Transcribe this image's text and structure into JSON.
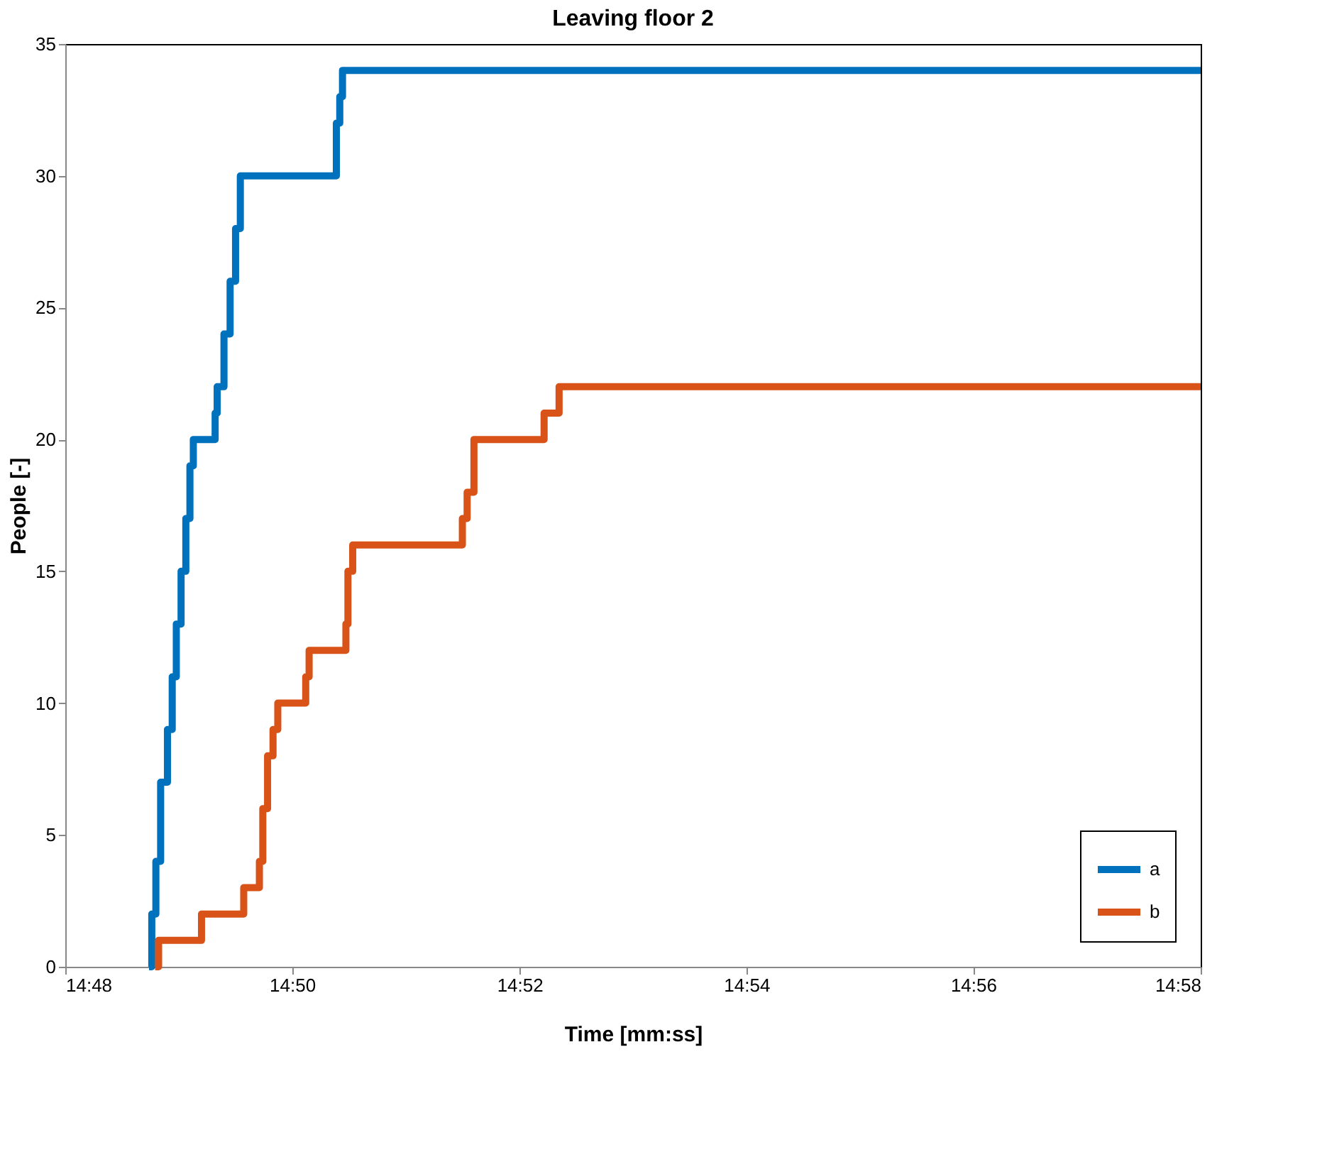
{
  "chart_data": {
    "type": "step",
    "title": "Leaving floor 2",
    "xlabel": "Time [mm:ss]",
    "ylabel": "People [-]",
    "xlim": [
      14.8,
      14.9667
    ],
    "xticks": [
      {
        "value": 14.8,
        "label": "14:48"
      },
      {
        "value": 14.8333,
        "label": "14:50"
      },
      {
        "value": 14.8667,
        "label": "14:52"
      },
      {
        "value": 14.9,
        "label": "14:54"
      },
      {
        "value": 14.9333,
        "label": "14:56"
      },
      {
        "value": 14.9667,
        "label": "14:58"
      }
    ],
    "ylim": [
      0,
      35
    ],
    "yticks": [
      0,
      5,
      10,
      15,
      20,
      25,
      30,
      35
    ],
    "grid": false,
    "legend": "bottom right",
    "series": [
      {
        "name": "a",
        "color": "#0072bd",
        "x": [
          14.8123,
          14.8127,
          14.8133,
          14.814,
          14.815,
          14.8157,
          14.8163,
          14.817,
          14.8177,
          14.8183,
          14.8188,
          14.822,
          14.8223,
          14.8233,
          14.8242,
          14.825,
          14.8257,
          14.8398,
          14.8403,
          14.8407,
          14.9667
        ],
        "values": [
          0,
          2,
          4,
          7,
          9,
          11,
          13,
          15,
          17,
          19,
          20,
          21,
          22,
          24,
          26,
          28,
          30,
          32,
          33,
          34,
          34
        ]
      },
      {
        "name": "b",
        "color": "#d95319",
        "x": [
          14.8132,
          14.8137,
          14.82,
          14.8262,
          14.8285,
          14.829,
          14.8297,
          14.8305,
          14.8312,
          14.8353,
          14.8358,
          14.8412,
          14.8415,
          14.8422,
          14.8583,
          14.859,
          14.86,
          14.8703,
          14.8725,
          14.9667
        ],
        "values": [
          0,
          1,
          2,
          3,
          4,
          6,
          8,
          9,
          10,
          11,
          12,
          13,
          15,
          16,
          17,
          18,
          20,
          21,
          22,
          22
        ]
      }
    ]
  }
}
